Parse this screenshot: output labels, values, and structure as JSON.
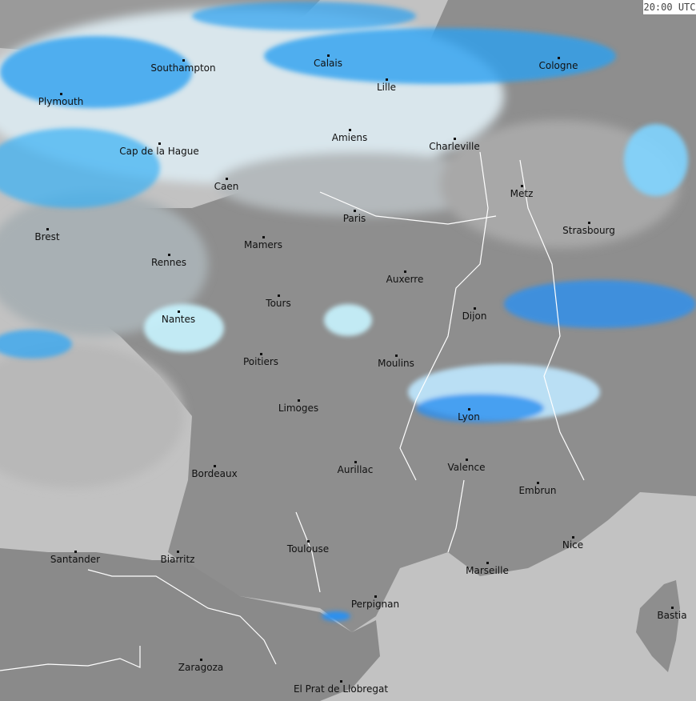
{
  "timestamp": "20:00 UTC",
  "colors": {
    "sea": "#c2c2c2",
    "land": "#8e8e8e",
    "cloud_light": "#d8e8f0",
    "precip_light": "#7fe0ff",
    "precip": "#2aa0f0",
    "precip_heavy": "#1070e0",
    "border": "#ffffff"
  },
  "cities": [
    "Southampton",
    "Calais",
    "Lille",
    "Cologne",
    "Plymouth",
    "Cap de la Hague",
    "Amiens",
    "Charleville",
    "Caen",
    "Metz",
    "Paris",
    "Strasbourg",
    "Brest",
    "Mamers",
    "Rennes",
    "Auxerre",
    "Tours",
    "Dijon",
    "Nantes",
    "Poitiers",
    "Moulins",
    "Limoges",
    "Lyon",
    "Valence",
    "Aurillac",
    "Bordeaux",
    "Embrun",
    "Nice",
    "Toulouse",
    "Santander",
    "Biarritz",
    "Marseille",
    "Perpignan",
    "Bastia",
    "Zaragoza",
    "El Prat de Llobregat"
  ]
}
